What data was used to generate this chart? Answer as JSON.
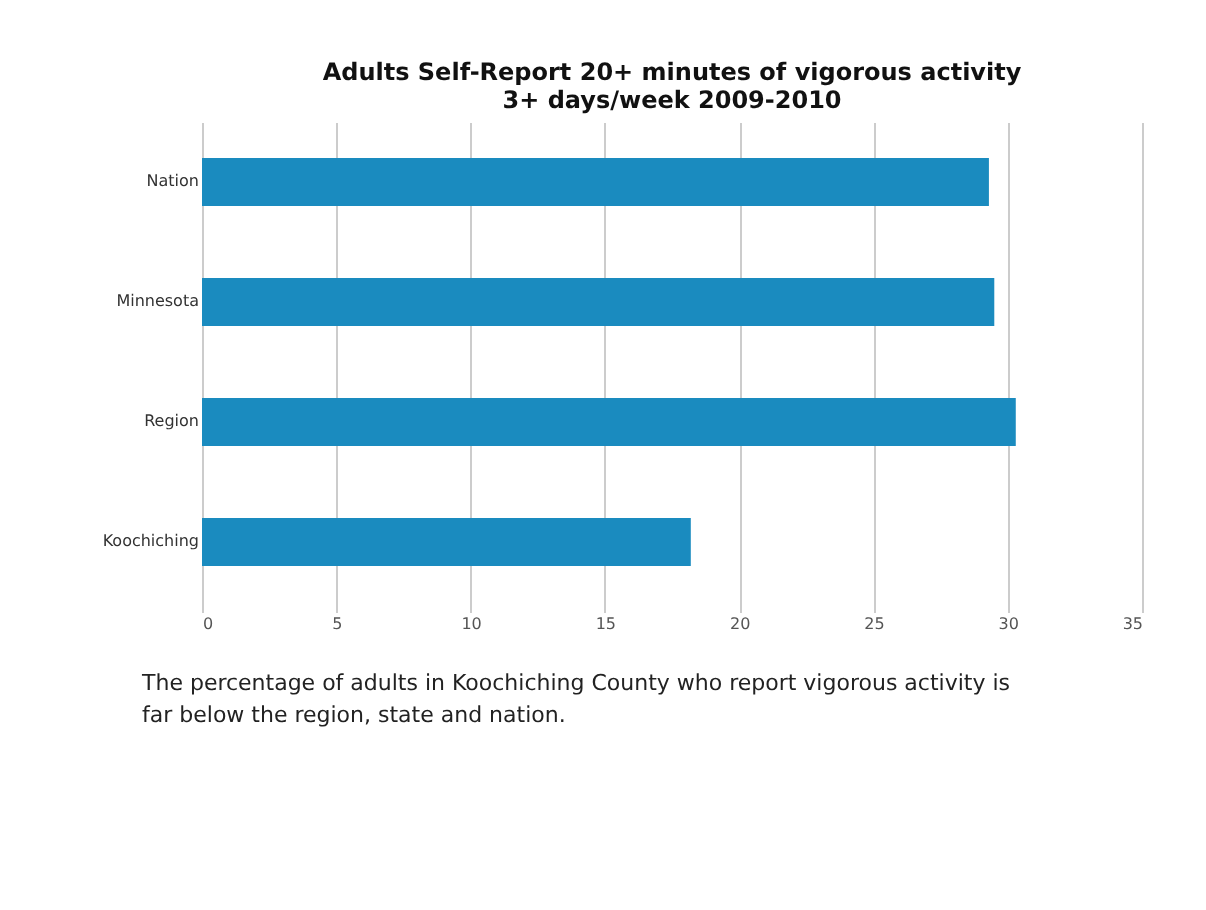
{
  "chart_data": {
    "type": "bar",
    "orientation": "horizontal",
    "title": "Adults Self-Report 20+ minutes of vigorous activity\n3+ days/week   2009-2010",
    "categories": [
      "Nation",
      "Minnesota",
      "Region",
      "Koochiching"
    ],
    "values": [
      29.3,
      29.5,
      30.3,
      18.2
    ],
    "color": "#1a8bbf",
    "xlim": [
      0,
      35
    ],
    "xticks": [
      0,
      5,
      10,
      15,
      20,
      25,
      30,
      35
    ],
    "grid": "x",
    "annotations": [
      "The percentage of adults in Koochiching County who report vigorous activity is far below the region, state and nation."
    ]
  }
}
